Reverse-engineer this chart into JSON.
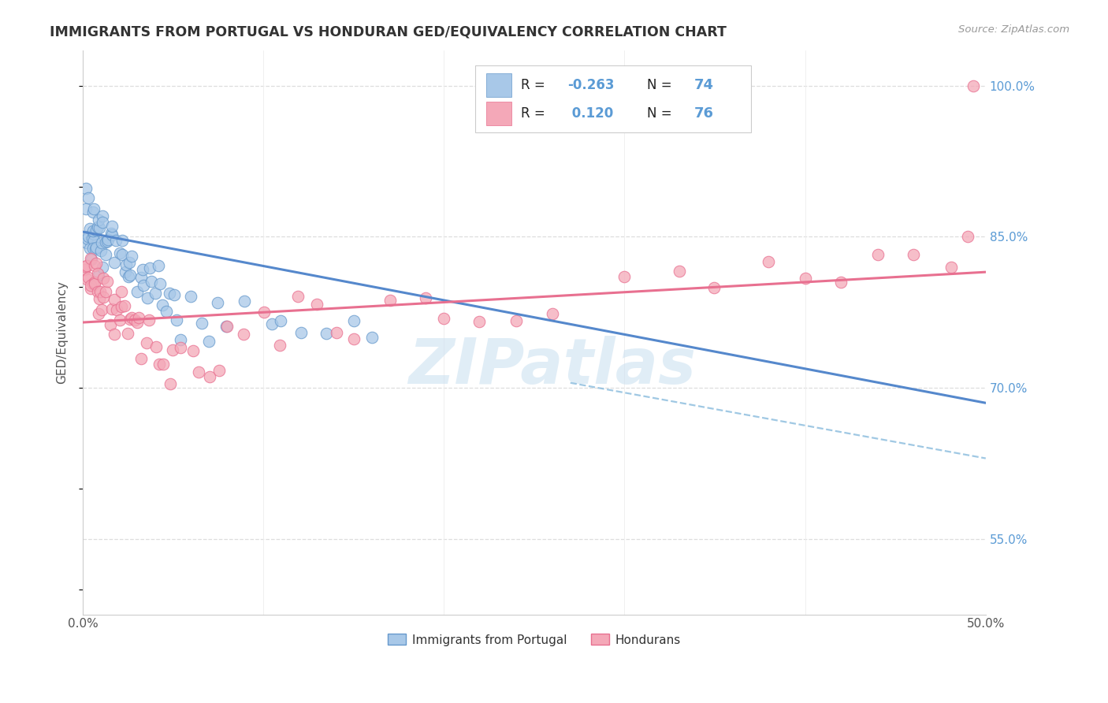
{
  "title": "IMMIGRANTS FROM PORTUGAL VS HONDURAN GED/EQUIVALENCY CORRELATION CHART",
  "source": "Source: ZipAtlas.com",
  "ylabel": "GED/Equivalency",
  "ytick_labels": [
    "100.0%",
    "85.0%",
    "70.0%",
    "55.0%"
  ],
  "ytick_values": [
    1.0,
    0.85,
    0.7,
    0.55
  ],
  "xlim": [
    0.0,
    0.5
  ],
  "ylim": [
    0.475,
    1.035
  ],
  "xtick_labels": [
    "0.0%",
    "",
    "",
    "",
    "",
    "50.0%"
  ],
  "xtick_values": [
    0.0,
    0.1,
    0.2,
    0.3,
    0.4,
    0.5
  ],
  "color_blue": "#a8c8e8",
  "color_pink": "#f4a8b8",
  "color_blue_edge": "#6699cc",
  "color_pink_edge": "#e87090",
  "color_line_blue": "#5588cc",
  "color_line_pink": "#e87090",
  "color_dashed_blue": "#88bbdd",
  "color_grid": "#dddddd",
  "color_title": "#333333",
  "color_source": "#999999",
  "color_ytick": "#5b9bd5",
  "color_xtick": "#555555",
  "color_ylabel": "#555555",
  "color_watermark": "#c8dff0",
  "watermark": "ZIPatlas",
  "legend_box_color": "#dddddd",
  "blue_line_x": [
    0.0,
    0.5
  ],
  "blue_line_y": [
    0.855,
    0.685
  ],
  "pink_line_x": [
    0.0,
    0.5
  ],
  "pink_line_y": [
    0.765,
    0.815
  ],
  "dash_line_x": [
    0.27,
    0.5
  ],
  "dash_line_y": [
    0.705,
    0.63
  ],
  "portugal_x": [
    0.001,
    0.002,
    0.002,
    0.003,
    0.003,
    0.004,
    0.004,
    0.004,
    0.005,
    0.005,
    0.005,
    0.006,
    0.006,
    0.006,
    0.006,
    0.007,
    0.007,
    0.007,
    0.008,
    0.008,
    0.008,
    0.009,
    0.009,
    0.01,
    0.01,
    0.011,
    0.011,
    0.012,
    0.012,
    0.013,
    0.014,
    0.015,
    0.015,
    0.016,
    0.017,
    0.018,
    0.019,
    0.02,
    0.021,
    0.022,
    0.023,
    0.024,
    0.025,
    0.026,
    0.027,
    0.028,
    0.03,
    0.031,
    0.033,
    0.034,
    0.035,
    0.037,
    0.038,
    0.04,
    0.042,
    0.043,
    0.045,
    0.046,
    0.048,
    0.05,
    0.052,
    0.055,
    0.06,
    0.065,
    0.07,
    0.075,
    0.08,
    0.09,
    0.105,
    0.11,
    0.12,
    0.135,
    0.15,
    0.16
  ],
  "portugal_y": [
    0.88,
    0.88,
    0.84,
    0.88,
    0.85,
    0.86,
    0.85,
    0.84,
    0.87,
    0.86,
    0.83,
    0.86,
    0.85,
    0.84,
    0.82,
    0.87,
    0.85,
    0.83,
    0.86,
    0.84,
    0.82,
    0.86,
    0.84,
    0.86,
    0.84,
    0.85,
    0.83,
    0.86,
    0.84,
    0.85,
    0.84,
    0.86,
    0.83,
    0.85,
    0.84,
    0.83,
    0.85,
    0.83,
    0.82,
    0.84,
    0.83,
    0.82,
    0.81,
    0.83,
    0.82,
    0.81,
    0.8,
    0.82,
    0.81,
    0.8,
    0.79,
    0.81,
    0.8,
    0.79,
    0.81,
    0.8,
    0.79,
    0.78,
    0.8,
    0.79,
    0.78,
    0.77,
    0.79,
    0.78,
    0.77,
    0.78,
    0.77,
    0.78,
    0.77,
    0.78,
    0.77,
    0.76,
    0.77,
    0.76
  ],
  "honduras_x": [
    0.001,
    0.002,
    0.002,
    0.003,
    0.003,
    0.004,
    0.004,
    0.005,
    0.005,
    0.006,
    0.006,
    0.007,
    0.007,
    0.008,
    0.008,
    0.009,
    0.009,
    0.01,
    0.01,
    0.011,
    0.012,
    0.013,
    0.014,
    0.015,
    0.016,
    0.017,
    0.018,
    0.019,
    0.02,
    0.021,
    0.022,
    0.023,
    0.025,
    0.026,
    0.027,
    0.028,
    0.03,
    0.032,
    0.033,
    0.035,
    0.037,
    0.04,
    0.042,
    0.045,
    0.048,
    0.05,
    0.055,
    0.06,
    0.065,
    0.07,
    0.075,
    0.08,
    0.09,
    0.1,
    0.11,
    0.12,
    0.13,
    0.14,
    0.15,
    0.17,
    0.19,
    0.2,
    0.22,
    0.24,
    0.26,
    0.3,
    0.33,
    0.35,
    0.38,
    0.4,
    0.42,
    0.44,
    0.46,
    0.48,
    0.49,
    0.495
  ],
  "honduras_y": [
    0.83,
    0.82,
    0.8,
    0.83,
    0.81,
    0.82,
    0.8,
    0.81,
    0.79,
    0.82,
    0.8,
    0.81,
    0.79,
    0.8,
    0.78,
    0.81,
    0.79,
    0.8,
    0.78,
    0.79,
    0.8,
    0.81,
    0.79,
    0.77,
    0.78,
    0.77,
    0.79,
    0.78,
    0.77,
    0.79,
    0.78,
    0.77,
    0.76,
    0.78,
    0.77,
    0.76,
    0.75,
    0.76,
    0.75,
    0.74,
    0.75,
    0.74,
    0.73,
    0.72,
    0.71,
    0.73,
    0.74,
    0.72,
    0.71,
    0.72,
    0.71,
    0.75,
    0.76,
    0.78,
    0.77,
    0.78,
    0.79,
    0.78,
    0.77,
    0.79,
    0.78,
    0.77,
    0.76,
    0.78,
    0.79,
    0.8,
    0.81,
    0.8,
    0.81,
    0.82,
    0.81,
    0.82,
    0.81,
    0.82,
    0.83,
    1.0
  ]
}
